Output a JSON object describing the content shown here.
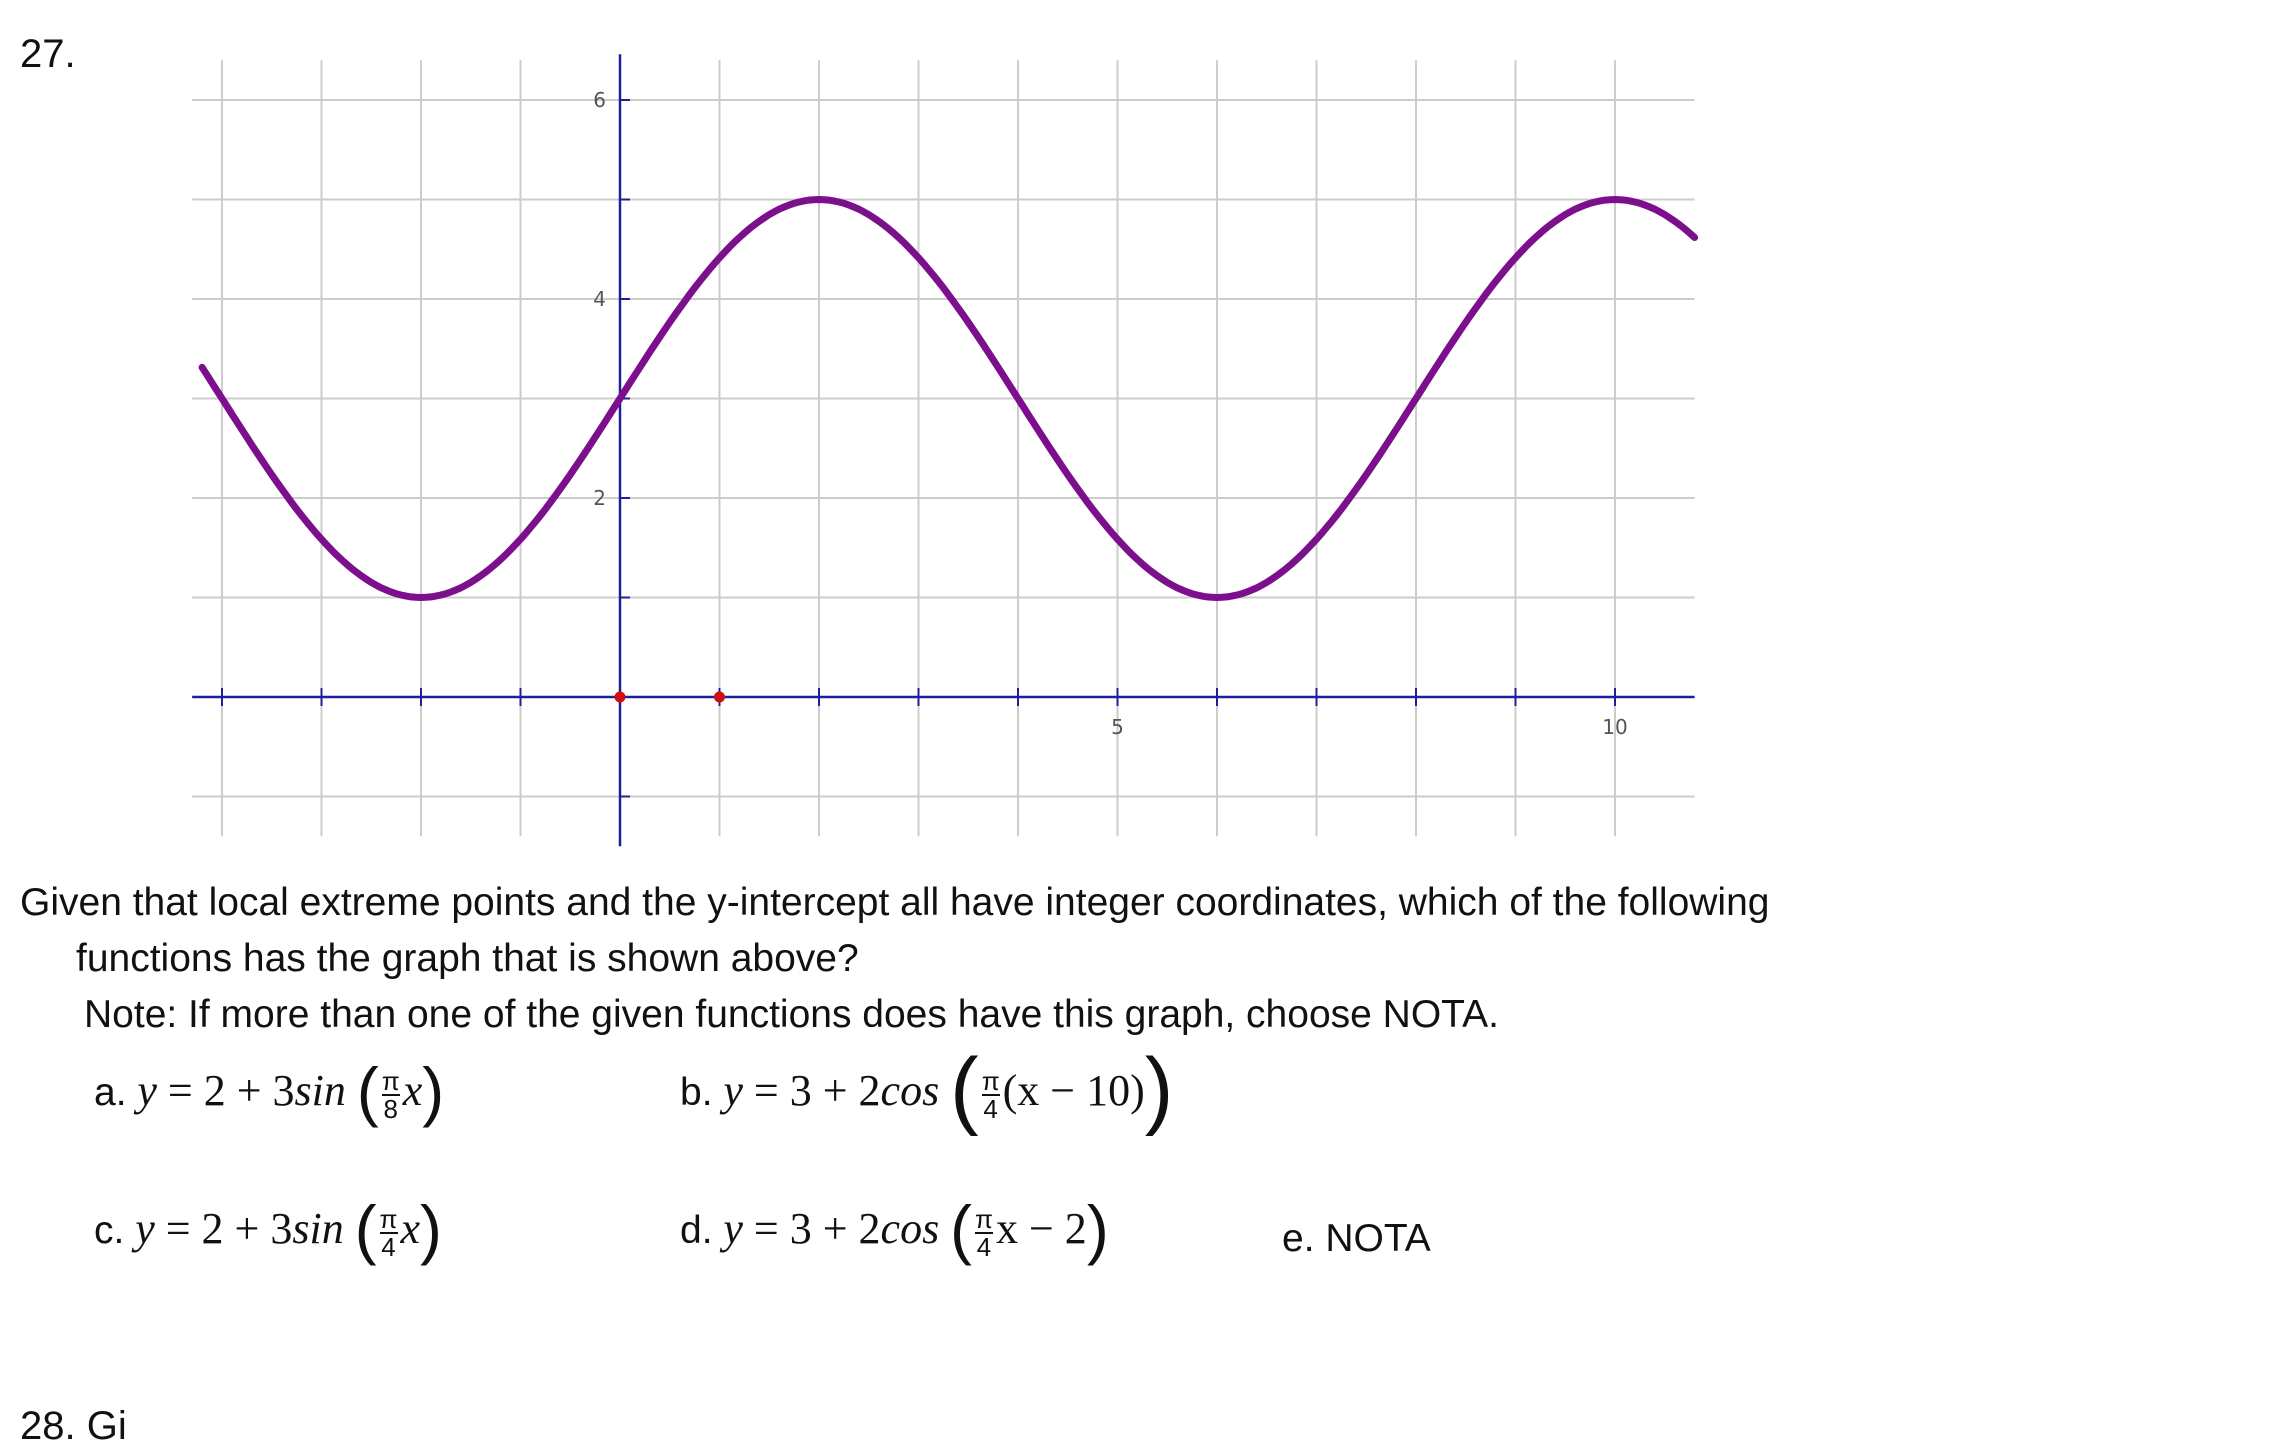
{
  "question": {
    "number": "27.",
    "prompt_line1": "Given that local extreme points and the y-intercept all have integer coordinates, which of the following",
    "prompt_line2": "functions has the graph that is shown above?",
    "note": "Note: If more than one of the given functions does have this graph, choose NOTA.",
    "options": {
      "a": {
        "label": "a.",
        "pre": "= 2 + 3",
        "fn": "sin",
        "num": "π",
        "den": "8",
        "arg_tail": "x"
      },
      "b": {
        "label": "b.",
        "pre": "= 3 + 2",
        "fn": "cos",
        "num": "π",
        "den": "4",
        "arg_tail": "(x − 10)"
      },
      "c": {
        "label": "c.",
        "pre": "= 2 + 3",
        "fn": "sin",
        "num": "π",
        "den": "4",
        "arg_tail": "x"
      },
      "d": {
        "label": "d.",
        "pre": "= 3 + 2",
        "fn": "cos",
        "num": "π",
        "den": "4",
        "arg_tail": "x − 2"
      },
      "e": {
        "label": "e.",
        "text": "NOTA"
      }
    },
    "next_question_fragment": "28. Gi"
  },
  "chart_data": {
    "type": "line",
    "title": "",
    "xlabel": "",
    "ylabel": "",
    "xlim": [
      -4.3,
      10.8
    ],
    "ylim": [
      -1.4,
      6.4
    ],
    "x_tick_labels": [
      "5",
      "10"
    ],
    "y_tick_labels": [
      "2",
      "4",
      "6"
    ],
    "grid": true,
    "series": [
      {
        "function": "y = 3 + 2 sin(π/4 · x)",
        "color": "#7b0f8c",
        "points": [
          [
            -4.2,
            3.31
          ],
          [
            -2,
            1
          ],
          [
            0,
            3
          ],
          [
            2,
            5
          ],
          [
            4,
            3
          ],
          [
            6,
            1
          ],
          [
            8,
            3
          ],
          [
            10,
            5
          ],
          [
            10.8,
            4.25
          ]
        ]
      }
    ],
    "marked_points": [
      [
        0,
        0
      ],
      [
        1,
        0
      ]
    ],
    "colors": {
      "curve": "#7b0f8c",
      "axis": "#1f1f9a",
      "grid": "#cccccc",
      "point": "#d01010"
    }
  }
}
